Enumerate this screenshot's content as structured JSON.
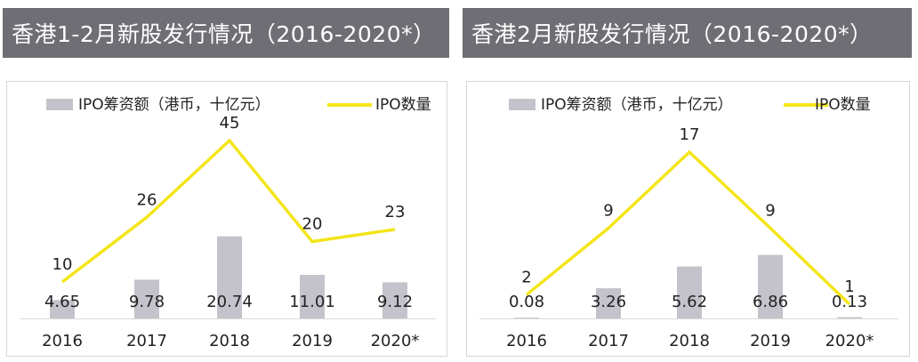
{
  "chart_data": [
    {
      "type": "bar",
      "title": "香港1-2月新股发行情况（2016-2020*）",
      "categories": [
        "2016",
        "2017",
        "2018",
        "2019",
        "2020*"
      ],
      "series": [
        {
          "name": "IPO筹资额（港币，十亿元）",
          "type": "bar",
          "values": [
            4.65,
            9.78,
            20.74,
            11.01,
            9.12
          ],
          "labels": [
            "4.65",
            "9.78",
            "20.74",
            "11.01",
            "9.12"
          ],
          "color": "#c4c3cc"
        },
        {
          "name": "IPO数量",
          "type": "line",
          "values": [
            10,
            26,
            45,
            20,
            23
          ],
          "labels": [
            "10",
            "26",
            "45",
            "20",
            "23"
          ],
          "color": "#f3e51a"
        }
      ],
      "legend_position": "top",
      "grid": false
    },
    {
      "type": "bar",
      "title": "香港2月新股发行情况（2016-2020*）",
      "categories": [
        "2016",
        "2017",
        "2018",
        "2019",
        "2020*"
      ],
      "series": [
        {
          "name": "IPO筹资额（港币，十亿元）",
          "type": "bar",
          "values": [
            0.08,
            3.26,
            5.62,
            6.86,
            0.13
          ],
          "labels": [
            "0.08",
            "3.26",
            "5.62",
            "6.86",
            "0.13"
          ],
          "color": "#c4c3cc"
        },
        {
          "name": "IPO数量",
          "type": "line",
          "values": [
            2,
            9,
            17,
            9,
            1
          ],
          "labels": [
            "2",
            "9",
            "17",
            "9",
            "1"
          ],
          "color": "#f3e51a"
        }
      ],
      "legend_position": "top",
      "grid": false
    }
  ]
}
